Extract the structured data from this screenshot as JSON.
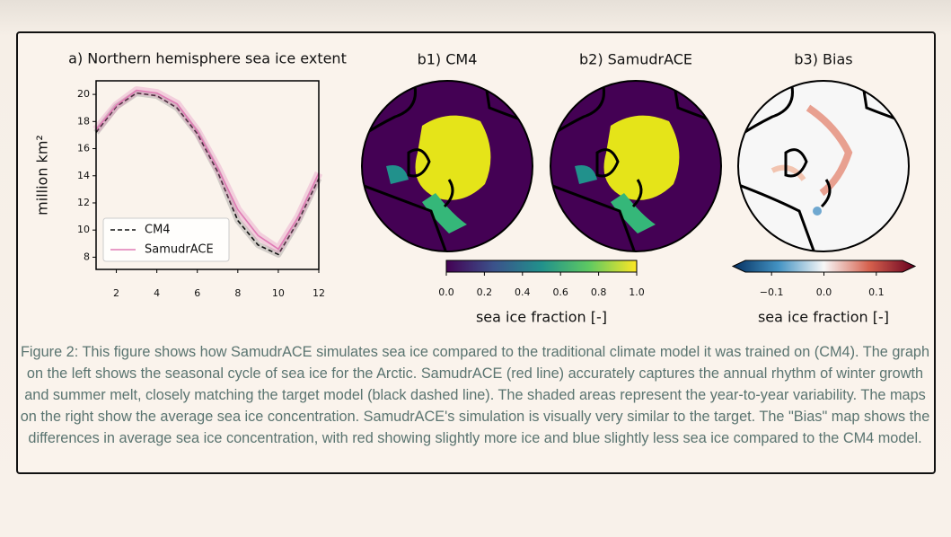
{
  "chart_data": {
    "type": "line",
    "title": "a) Northern hemisphere sea ice extent",
    "y_label": "million km²",
    "x": [
      1,
      2,
      3,
      4,
      5,
      6,
      7,
      8,
      9,
      10,
      11,
      12
    ],
    "series": [
      {
        "name": "CM4",
        "color": "#111111",
        "values": [
          17.2,
          19.1,
          20.1,
          19.9,
          19.0,
          17.1,
          14.3,
          10.7,
          8.9,
          8.2,
          10.7,
          13.8
        ]
      },
      {
        "name": "SamudrACE",
        "color": "#e07bb5",
        "values": [
          17.4,
          19.2,
          20.3,
          20.1,
          19.3,
          17.3,
          14.6,
          11.5,
          9.6,
          8.6,
          11.0,
          14.2
        ]
      }
    ],
    "xlim": [
      1,
      12
    ],
    "xticks": [
      2,
      4,
      6,
      8,
      10,
      12
    ],
    "ylim": [
      7.1,
      21
    ],
    "yticks": [
      8,
      10,
      12,
      14,
      16,
      18,
      20
    ],
    "legend": "lower left"
  },
  "maps": {
    "b1": "b1) CM4",
    "b2": "b2) SamudrACE",
    "b3": "b3) Bias"
  },
  "colorbars": [
    {
      "label": "sea ice fraction [-]",
      "range": [
        0,
        1
      ],
      "ticks": [
        {
          "value": 0,
          "label": "0.0"
        },
        0.2,
        0.4,
        0.6,
        0.8,
        {
          "value": 1,
          "label": "1.0"
        }
      ]
    },
    {
      "label": "sea ice fraction [-]",
      "range": [
        -0.15,
        0.15
      ],
      "ticks": [
        {
          "value": -0.1,
          "label": "−0.1"
        },
        {
          "value": 0,
          "label": "0.0"
        },
        0.1
      ]
    }
  ],
  "caption": "Figure 2: This figure shows how SamudrACE simulates sea ice compared to the traditional climate model it was trained on (CM4). The graph on the left shows the seasonal cycle of sea ice for the Arctic. SamudrACE (red line) accurately captures the annual rhythm of winter growth and summer melt, closely matching the target model (black dashed line). The shaded areas represent the year-to-year variability. The maps on the right show the average sea ice concentration. SamudrACE's simulation is visually very similar to the target. The \"Bias\" map shows the differences in average sea ice concentration, with red showing slightly more ice and blue slightly less sea ice compared to the CM4 model."
}
